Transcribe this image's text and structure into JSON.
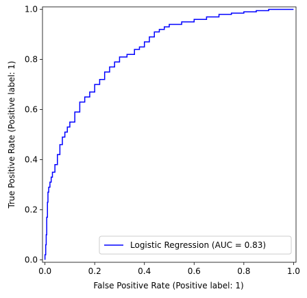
{
  "chart_data": {
    "type": "line",
    "title": "",
    "xlabel": "False Positive Rate (Positive label: 1)",
    "ylabel": "True Positive Rate (Positive label: 1)",
    "xlim": [
      -0.01,
      1.01
    ],
    "ylim": [
      -0.01,
      1.01
    ],
    "xticks": [
      "0.0",
      "0.2",
      "0.4",
      "0.6",
      "0.8",
      "1.0"
    ],
    "yticks": [
      "0.0",
      "0.2",
      "0.4",
      "0.6",
      "0.8",
      "1.0"
    ],
    "grid": false,
    "legend_position": "bottom-right",
    "series": [
      {
        "name": "Logistic Regression (AUC = 0.83)",
        "color": "#0000ff",
        "x": [
          0.0,
          0.0,
          0.003,
          0.005,
          0.007,
          0.01,
          0.012,
          0.015,
          0.02,
          0.025,
          0.03,
          0.04,
          0.05,
          0.06,
          0.07,
          0.08,
          0.09,
          0.1,
          0.12,
          0.14,
          0.16,
          0.18,
          0.2,
          0.22,
          0.24,
          0.26,
          0.28,
          0.3,
          0.33,
          0.36,
          0.38,
          0.4,
          0.42,
          0.44,
          0.46,
          0.48,
          0.5,
          0.55,
          0.6,
          0.65,
          0.7,
          0.75,
          0.8,
          0.85,
          0.9,
          0.95,
          1.0
        ],
        "y": [
          0.0,
          0.02,
          0.06,
          0.1,
          0.17,
          0.23,
          0.27,
          0.29,
          0.31,
          0.33,
          0.35,
          0.38,
          0.42,
          0.46,
          0.49,
          0.51,
          0.53,
          0.55,
          0.59,
          0.63,
          0.65,
          0.67,
          0.7,
          0.72,
          0.75,
          0.77,
          0.79,
          0.81,
          0.82,
          0.84,
          0.85,
          0.87,
          0.89,
          0.91,
          0.92,
          0.93,
          0.94,
          0.95,
          0.96,
          0.97,
          0.98,
          0.985,
          0.99,
          0.995,
          1.0,
          1.0,
          1.0
        ]
      }
    ]
  }
}
